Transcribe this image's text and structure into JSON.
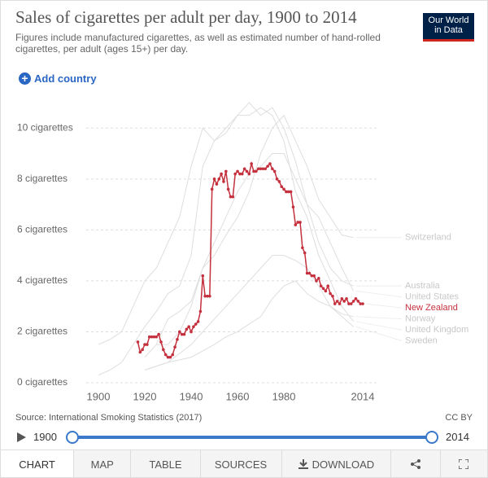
{
  "header": {
    "logo": [
      "Our World",
      "in Data"
    ]
  },
  "controls": {
    "add_country": "Add country"
  },
  "chart_data": {
    "type": "line",
    "title": "Sales of cigarettes per adult per day, 1900 to 2014",
    "subtitle": "Figures include manufactured cigarettes, as well as estimated number of hand-rolled cigarettes, per adult (ages 15+) per day.",
    "xlim": [
      1900,
      2014
    ],
    "xticks": [
      1900,
      1920,
      1940,
      1960,
      1980,
      2014
    ],
    "ylim": [
      0,
      11
    ],
    "yticks": [
      {
        "value": 0,
        "label": "0 cigarettes"
      },
      {
        "value": 2,
        "label": "2 cigarettes"
      },
      {
        "value": 4,
        "label": "4 cigarettes"
      },
      {
        "value": 6,
        "label": "6 cigarettes"
      },
      {
        "value": 8,
        "label": "8 cigarettes"
      },
      {
        "value": 10,
        "label": "10 cigarettes"
      }
    ],
    "grid": true,
    "series": [
      {
        "name": "Switzerland",
        "color": "#dedede",
        "label_color": "#c8c8c8",
        "x": [
          1925,
          1930,
          1935,
          1940,
          1945,
          1950,
          1955,
          1960,
          1965,
          1970,
          1975,
          1980,
          1985,
          1990,
          1995,
          2000,
          2005,
          2010
        ],
        "values": [
          1.5,
          2.5,
          2.8,
          3.2,
          4.5,
          5.0,
          5.8,
          6.5,
          7.5,
          9.0,
          10.0,
          10.5,
          9.5,
          8.5,
          7.2,
          6.5,
          5.8,
          5.7
        ]
      },
      {
        "name": "Australia",
        "color": "#dedede",
        "label_color": "#c8c8c8",
        "x": [
          1920,
          1925,
          1930,
          1935,
          1940,
          1945,
          1950,
          1955,
          1960,
          1965,
          1970,
          1975,
          1980,
          1985,
          1990,
          1995,
          2000,
          2005,
          2010
        ],
        "values": [
          1.0,
          1.5,
          1.5,
          2.0,
          3.0,
          4.5,
          5.5,
          6.5,
          7.5,
          8.2,
          8.5,
          9.0,
          9.0,
          8.0,
          7.0,
          5.5,
          4.5,
          4.0,
          3.8
        ]
      },
      {
        "name": "United States",
        "color": "#dedede",
        "label_color": "#c8c8c8",
        "x": [
          1900,
          1905,
          1910,
          1915,
          1920,
          1925,
          1930,
          1935,
          1940,
          1945,
          1950,
          1955,
          1960,
          1965,
          1970,
          1975,
          1980,
          1985,
          1990,
          1995,
          2000,
          2005,
          2010
        ],
        "values": [
          0.3,
          0.5,
          0.8,
          1.5,
          2.2,
          2.8,
          3.5,
          3.8,
          5.0,
          8.5,
          9.5,
          9.8,
          10.5,
          11.0,
          10.5,
          10.8,
          10.0,
          8.7,
          7.0,
          6.5,
          5.5,
          4.5,
          3.6
        ]
      },
      {
        "name": "Norway",
        "color": "#dedede",
        "label_color": "#c8c8c8",
        "x": [
          1920,
          1930,
          1940,
          1950,
          1955,
          1960,
          1965,
          1970,
          1975,
          1980,
          1985,
          1990,
          1995,
          2000,
          2005,
          2010
        ],
        "values": [
          0.5,
          0.8,
          1.0,
          1.5,
          1.8,
          2.0,
          2.3,
          2.6,
          3.3,
          3.8,
          4.0,
          3.5,
          3.2,
          3.0,
          2.7,
          2.6
        ]
      },
      {
        "name": "New Zealand",
        "color": "#c4303d",
        "label_color": "#c4303d",
        "markers": true,
        "x": [
          1917,
          1918,
          1919,
          1920,
          1921,
          1922,
          1923,
          1924,
          1925,
          1926,
          1927,
          1928,
          1929,
          1930,
          1931,
          1932,
          1933,
          1934,
          1935,
          1936,
          1937,
          1938,
          1939,
          1940,
          1941,
          1942,
          1943,
          1944,
          1945,
          1946,
          1947,
          1948,
          1949,
          1950,
          1951,
          1952,
          1953,
          1954,
          1955,
          1956,
          1957,
          1958,
          1959,
          1960,
          1961,
          1962,
          1963,
          1964,
          1965,
          1966,
          1967,
          1968,
          1969,
          1970,
          1971,
          1972,
          1973,
          1974,
          1975,
          1976,
          1977,
          1978,
          1979,
          1980,
          1981,
          1982,
          1983,
          1984,
          1985,
          1986,
          1987,
          1988,
          1989,
          1990,
          1991,
          1992,
          1993,
          1994,
          1995,
          1996,
          1997,
          1998,
          1999,
          2000,
          2001,
          2002,
          2003,
          2004,
          2005,
          2006,
          2007,
          2008,
          2009,
          2010,
          2011,
          2012,
          2013,
          2014
        ],
        "values": [
          1.6,
          1.2,
          1.3,
          1.5,
          1.5,
          1.8,
          1.8,
          1.8,
          1.8,
          1.9,
          1.6,
          1.3,
          1.1,
          1.0,
          1.0,
          1.1,
          1.4,
          1.7,
          2.0,
          1.9,
          1.9,
          2.1,
          2.2,
          2.0,
          2.2,
          2.3,
          2.4,
          2.8,
          4.2,
          3.4,
          3.4,
          3.4,
          7.6,
          8.0,
          7.8,
          8.0,
          8.2,
          7.9,
          8.3,
          7.6,
          7.3,
          7.3,
          8.2,
          8.3,
          8.2,
          8.2,
          8.4,
          8.3,
          8.2,
          8.6,
          8.3,
          8.3,
          8.4,
          8.4,
          8.4,
          8.4,
          8.5,
          8.6,
          8.4,
          8.3,
          8.0,
          7.9,
          7.7,
          7.6,
          7.5,
          7.5,
          7.5,
          6.9,
          6.2,
          6.3,
          6.3,
          5.3,
          5.1,
          4.3,
          4.3,
          4.2,
          4.2,
          4.0,
          4.1,
          3.8,
          3.7,
          3.6,
          3.8,
          3.5,
          3.4,
          3.1,
          3.2,
          3.1,
          3.3,
          3.2,
          3.3,
          3.1,
          3.1,
          3.2,
          3.3,
          3.2,
          3.1,
          3.1
        ]
      },
      {
        "name": "United Kingdom",
        "color": "#dedede",
        "label_color": "#c8c8c8",
        "x": [
          1900,
          1905,
          1910,
          1915,
          1920,
          1925,
          1930,
          1935,
          1940,
          1945,
          1950,
          1955,
          1960,
          1965,
          1970,
          1975,
          1980,
          1985,
          1990,
          1995,
          2000,
          2005,
          2010
        ],
        "values": [
          1.5,
          1.7,
          2.0,
          3.0,
          4.0,
          4.5,
          5.5,
          6.5,
          8.5,
          10.0,
          9.5,
          10.0,
          10.5,
          10.5,
          10.8,
          10.5,
          9.5,
          7.5,
          6.5,
          5.0,
          4.0,
          3.0,
          2.4
        ]
      },
      {
        "name": "Sweden",
        "color": "#dedede",
        "label_color": "#c8c8c8",
        "x": [
          1920,
          1930,
          1940,
          1950,
          1955,
          1960,
          1965,
          1970,
          1975,
          1980,
          1985,
          1990,
          1995,
          2000,
          2005,
          2010
        ],
        "values": [
          0.5,
          0.8,
          1.5,
          2.5,
          3.0,
          3.5,
          4.0,
          4.5,
          5.0,
          5.0,
          4.8,
          4.5,
          3.8,
          3.0,
          2.6,
          2.2
        ]
      }
    ]
  },
  "footer": {
    "source": "Source: International Smoking Statistics (2017)",
    "license": "CC BY"
  },
  "timeline": {
    "start": "1900",
    "end": "2014"
  },
  "tabs": [
    "CHART",
    "MAP",
    "TABLE",
    "SOURCES",
    "DOWNLOAD"
  ]
}
